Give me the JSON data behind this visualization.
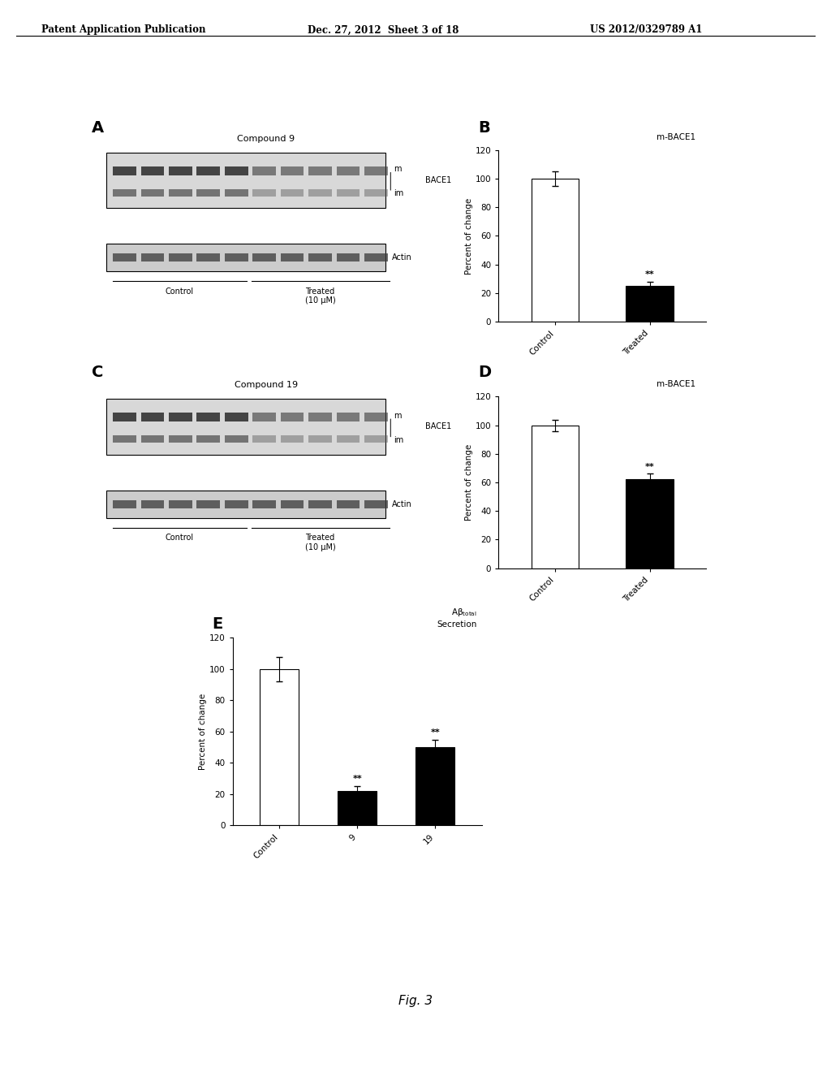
{
  "header_left": "Patent Application Publication",
  "header_center": "Dec. 27, 2012  Sheet 3 of 18",
  "header_right": "US 2012/0329789 A1",
  "figure_caption": "Fig. 3",
  "panel_B": {
    "label": "B",
    "title": "m-BACE1",
    "categories": [
      "Control",
      "Treated"
    ],
    "values": [
      100,
      25
    ],
    "errors": [
      5,
      3
    ],
    "colors": [
      "white",
      "black"
    ],
    "ylabel": "Percent of change",
    "ylim": [
      0,
      120
    ],
    "yticks": [
      0,
      20,
      40,
      60,
      80,
      100,
      120
    ],
    "significance": [
      "",
      "**"
    ]
  },
  "panel_D": {
    "label": "D",
    "title": "m-BACE1",
    "categories": [
      "Control",
      "Treated"
    ],
    "values": [
      100,
      62
    ],
    "errors": [
      4,
      4
    ],
    "colors": [
      "white",
      "black"
    ],
    "ylabel": "Percent of change",
    "ylim": [
      0,
      120
    ],
    "yticks": [
      0,
      20,
      40,
      60,
      80,
      100,
      120
    ],
    "significance": [
      "",
      "**"
    ]
  },
  "panel_E": {
    "label": "E",
    "title_line1": "Aβ",
    "title_sub": "total",
    "title_line2": "Secretion",
    "categories": [
      "Control",
      "9",
      "19"
    ],
    "values": [
      100,
      22,
      50
    ],
    "errors": [
      8,
      3,
      5
    ],
    "colors": [
      "white",
      "black",
      "black"
    ],
    "ylabel": "Percent of change",
    "ylim": [
      0,
      120
    ],
    "yticks": [
      0,
      20,
      40,
      60,
      80,
      100,
      120
    ],
    "significance": [
      "",
      "**",
      "**"
    ]
  },
  "panel_A": {
    "label": "A",
    "compound": "Compound 9"
  },
  "panel_C": {
    "label": "C",
    "compound": "Compound 19"
  }
}
